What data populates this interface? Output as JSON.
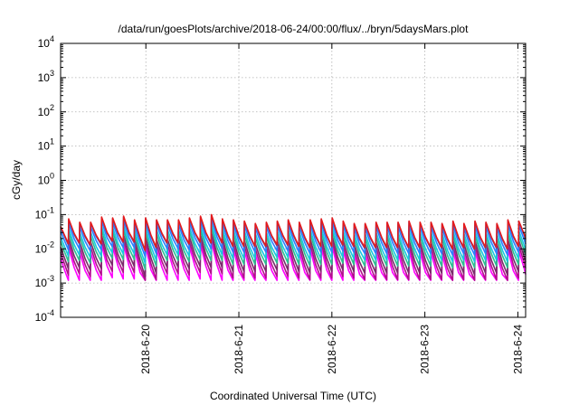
{
  "chart_data": {
    "type": "line",
    "title": "/data/run/goesPlots/archive/2018-06-24/00:00/flux/../bryn/5daysMars.plot",
    "xlabel": "Coordinated Universal Time (UTC)",
    "ylabel": "cGy/day",
    "xlim": [
      "2018-06-19T02:00",
      "2018-06-24T02:00"
    ],
    "yscale": "log",
    "ylim": [
      0.0001,
      10000
    ],
    "grid": true,
    "legend": "none",
    "x_ticks": [
      {
        "x": "2018-06-20T00:00",
        "label": "2018-6-20"
      },
      {
        "x": "2018-06-21T00:00",
        "label": "2018-6-21"
      },
      {
        "x": "2018-06-22T00:00",
        "label": "2018-6-22"
      },
      {
        "x": "2018-06-23T00:00",
        "label": "2018-6-23"
      },
      {
        "x": "2018-06-24T00:00",
        "label": "2018-6-24"
      }
    ],
    "y_ticks": [
      {
        "y": 0.0001,
        "base": "10",
        "exp": "-4"
      },
      {
        "y": 0.001,
        "base": "10",
        "exp": "-3"
      },
      {
        "y": 0.01,
        "base": "10",
        "exp": "-2"
      },
      {
        "y": 0.1,
        "base": "10",
        "exp": "-1"
      },
      {
        "y": 1,
        "base": "10",
        "exp": "0"
      },
      {
        "y": 10,
        "base": "10",
        "exp": "1"
      },
      {
        "y": 100,
        "base": "10",
        "exp": "2"
      },
      {
        "y": 1000,
        "base": "10",
        "exp": "3"
      },
      {
        "y": 10000,
        "base": "10",
        "exp": "4"
      }
    ],
    "series": [
      {
        "color": "#e41a1c",
        "values": [
          [
            "2018-06-19T02:00",
            0.045
          ],
          [
            "2018-06-19T03:00",
            0.025
          ],
          [
            "2018-06-19T04:00",
            0.014
          ],
          [
            "2018-06-19T04:05",
            0.075
          ],
          [
            "2018-06-19T05:30",
            0.028
          ],
          [
            "2018-06-19T06:50",
            0.015
          ],
          [
            "2018-06-19T06:55",
            0.06
          ],
          [
            "2018-06-19T08:20",
            0.024
          ],
          [
            "2018-06-19T09:40",
            0.013
          ],
          [
            "2018-06-19T09:45",
            0.06
          ],
          [
            "2018-06-19T11:10",
            0.025
          ],
          [
            "2018-06-19T12:30",
            0.014
          ],
          [
            "2018-06-19T12:35",
            0.085
          ],
          [
            "2018-06-19T14:00",
            0.03
          ],
          [
            "2018-06-19T15:20",
            0.017
          ],
          [
            "2018-06-19T15:25",
            0.08
          ],
          [
            "2018-06-19T16:50",
            0.03
          ],
          [
            "2018-06-19T18:10",
            0.016
          ],
          [
            "2018-06-19T18:15",
            0.09
          ],
          [
            "2018-06-19T19:40",
            0.03
          ],
          [
            "2018-06-19T21:00",
            0.016
          ],
          [
            "2018-06-19T21:05",
            0.07
          ],
          [
            "2018-06-19T22:30",
            0.022
          ],
          [
            "2018-06-19T23:50",
            0.009
          ],
          [
            "2018-06-19T23:55",
            0.08
          ],
          [
            "2018-06-20T01:20",
            0.025
          ],
          [
            "2018-06-20T02:40",
            0.011
          ],
          [
            "2018-06-20T02:45",
            0.07
          ],
          [
            "2018-06-20T04:10",
            0.028
          ],
          [
            "2018-06-20T05:30",
            0.015
          ],
          [
            "2018-06-20T05:35",
            0.07
          ],
          [
            "2018-06-20T07:00",
            0.028
          ],
          [
            "2018-06-20T08:20",
            0.015
          ],
          [
            "2018-06-20T08:25",
            0.07
          ],
          [
            "2018-06-20T09:50",
            0.026
          ],
          [
            "2018-06-20T11:10",
            0.014
          ],
          [
            "2018-06-20T11:15",
            0.08
          ],
          [
            "2018-06-20T12:40",
            0.03
          ],
          [
            "2018-06-20T14:00",
            0.016
          ],
          [
            "2018-06-20T14:05",
            0.09
          ],
          [
            "2018-06-20T15:30",
            0.03
          ],
          [
            "2018-06-20T16:50",
            0.015
          ],
          [
            "2018-06-20T16:55",
            0.1
          ],
          [
            "2018-06-20T18:20",
            0.032
          ],
          [
            "2018-06-20T19:40",
            0.015
          ],
          [
            "2018-06-20T19:45",
            0.075
          ],
          [
            "2018-06-20T21:10",
            0.025
          ],
          [
            "2018-06-20T22:30",
            0.012
          ],
          [
            "2018-06-20T22:35",
            0.07
          ],
          [
            "2018-06-21T00:00",
            0.024
          ],
          [
            "2018-06-21T01:20",
            0.012
          ],
          [
            "2018-06-21T01:25",
            0.065
          ],
          [
            "2018-06-21T02:50",
            0.024
          ],
          [
            "2018-06-21T04:10",
            0.012
          ],
          [
            "2018-06-21T04:15",
            0.055
          ],
          [
            "2018-06-21T05:40",
            0.022
          ],
          [
            "2018-06-21T07:00",
            0.012
          ],
          [
            "2018-06-21T07:05",
            0.06
          ],
          [
            "2018-06-21T08:30",
            0.024
          ],
          [
            "2018-06-21T09:50",
            0.013
          ],
          [
            "2018-06-21T09:55",
            0.065
          ],
          [
            "2018-06-21T11:20",
            0.025
          ],
          [
            "2018-06-21T12:40",
            0.013
          ],
          [
            "2018-06-21T12:45",
            0.07
          ],
          [
            "2018-06-21T14:10",
            0.025
          ],
          [
            "2018-06-21T15:30",
            0.012
          ],
          [
            "2018-06-21T15:35",
            0.06
          ],
          [
            "2018-06-21T17:00",
            0.022
          ],
          [
            "2018-06-21T18:20",
            0.011
          ],
          [
            "2018-06-21T18:25",
            0.07
          ],
          [
            "2018-06-21T19:50",
            0.024
          ],
          [
            "2018-06-21T21:10",
            0.012
          ],
          [
            "2018-06-21T21:15",
            0.075
          ],
          [
            "2018-06-21T22:40",
            0.025
          ],
          [
            "2018-06-22T00:00",
            0.012
          ],
          [
            "2018-06-22T00:05",
            0.08
          ],
          [
            "2018-06-22T01:30",
            0.026
          ],
          [
            "2018-06-22T02:50",
            0.013
          ],
          [
            "2018-06-22T02:55",
            0.065
          ],
          [
            "2018-06-22T04:20",
            0.024
          ],
          [
            "2018-06-22T05:40",
            0.012
          ],
          [
            "2018-06-22T05:45",
            0.055
          ],
          [
            "2018-06-22T07:10",
            0.02
          ],
          [
            "2018-06-22T08:30",
            0.011
          ],
          [
            "2018-06-22T08:35",
            0.055
          ],
          [
            "2018-06-22T10:00",
            0.021
          ],
          [
            "2018-06-22T11:20",
            0.011
          ],
          [
            "2018-06-22T11:25",
            0.06
          ],
          [
            "2018-06-22T12:50",
            0.022
          ],
          [
            "2018-06-22T14:10",
            0.011
          ],
          [
            "2018-06-22T14:15",
            0.06
          ],
          [
            "2018-06-22T15:40",
            0.022
          ],
          [
            "2018-06-22T17:00",
            0.011
          ],
          [
            "2018-06-22T17:05",
            0.06
          ],
          [
            "2018-06-22T18:30",
            0.022
          ],
          [
            "2018-06-22T19:50",
            0.011
          ],
          [
            "2018-06-22T19:55",
            0.065
          ],
          [
            "2018-06-22T21:20",
            0.022
          ],
          [
            "2018-06-22T22:40",
            0.011
          ],
          [
            "2018-06-22T22:45",
            0.06
          ],
          [
            "2018-06-23T00:10",
            0.022
          ],
          [
            "2018-06-23T01:30",
            0.011
          ],
          [
            "2018-06-23T01:35",
            0.06
          ],
          [
            "2018-06-23T03:00",
            0.022
          ],
          [
            "2018-06-23T04:20",
            0.011
          ],
          [
            "2018-06-23T04:25",
            0.055
          ],
          [
            "2018-06-23T05:50",
            0.02
          ],
          [
            "2018-06-23T07:10",
            0.01
          ],
          [
            "2018-06-23T07:15",
            0.065
          ],
          [
            "2018-06-23T08:40",
            0.022
          ],
          [
            "2018-06-23T10:00",
            0.011
          ],
          [
            "2018-06-23T10:05",
            0.055
          ],
          [
            "2018-06-23T11:30",
            0.02
          ],
          [
            "2018-06-23T12:50",
            0.01
          ],
          [
            "2018-06-23T12:55",
            0.065
          ],
          [
            "2018-06-23T14:20",
            0.022
          ],
          [
            "2018-06-23T15:40",
            0.011
          ],
          [
            "2018-06-23T15:45",
            0.06
          ],
          [
            "2018-06-23T17:10",
            0.022
          ],
          [
            "2018-06-23T18:30",
            0.011
          ],
          [
            "2018-06-23T18:35",
            0.055
          ],
          [
            "2018-06-23T20:00",
            0.02
          ],
          [
            "2018-06-23T21:20",
            0.01
          ],
          [
            "2018-06-23T21:25",
            0.07
          ],
          [
            "2018-06-23T22:50",
            0.024
          ],
          [
            "2018-06-24T00:10",
            0.012
          ],
          [
            "2018-06-24T00:15",
            0.065
          ],
          [
            "2018-06-24T01:40",
            0.026
          ],
          [
            "2018-06-24T02:00",
            0.02
          ]
        ]
      }
    ],
    "band_colors": [
      "#e41a1c",
      "#3a55d0",
      "#2c7fff",
      "#18c8e0",
      "#2bbf90",
      "#7a2a6a",
      "#b0128a",
      "#ff00ff"
    ],
    "band_scales": [
      1.0,
      0.95,
      0.75,
      0.55,
      0.42,
      0.3,
      0.22,
      0.16
    ]
  }
}
